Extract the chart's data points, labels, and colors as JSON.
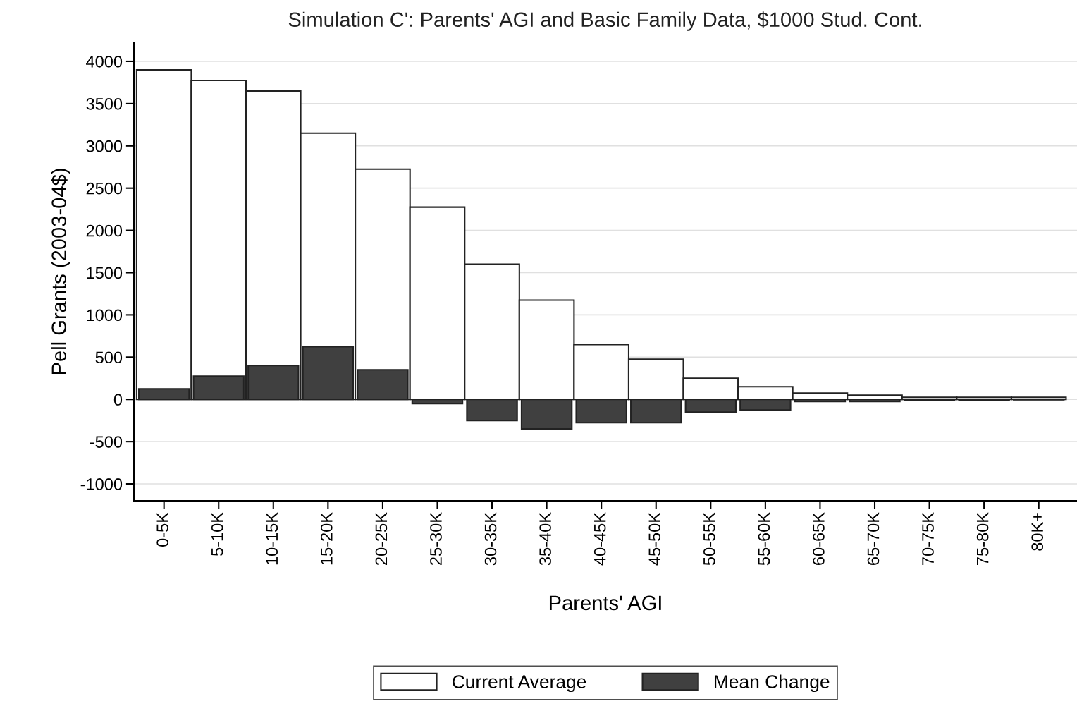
{
  "chart_data": {
    "type": "bar",
    "title": "Simulation C': Parents' AGI and Basic Family Data, $1000 Stud. Cont.",
    "xlabel": "Parents' AGI",
    "ylabel": "Pell Grants (2003-04$)",
    "categories": [
      "0-5K",
      "5-10K",
      "10-15K",
      "15-20K",
      "20-25K",
      "25-30K",
      "30-35K",
      "35-40K",
      "40-45K",
      "45-50K",
      "50-55K",
      "55-60K",
      "60-65K",
      "65-70K",
      "70-75K",
      "75-80K",
      "80K+"
    ],
    "series": [
      {
        "name": "Current Average",
        "color": "#ffffff",
        "values": [
          3900,
          3775,
          3650,
          3150,
          2725,
          2275,
          1600,
          1175,
          650,
          475,
          250,
          150,
          75,
          50,
          25,
          25,
          25
        ]
      },
      {
        "name": "Mean Change",
        "color": "#404040",
        "values": [
          125,
          275,
          400,
          625,
          350,
          -50,
          -250,
          -350,
          -275,
          -275,
          -150,
          -125,
          -25,
          -25,
          -10,
          -10,
          -5
        ]
      }
    ],
    "ylim": [
      -1200,
      4225
    ],
    "yticks": [
      -1000,
      -500,
      0,
      500,
      1000,
      1500,
      2000,
      2500,
      3000,
      3500,
      4000
    ],
    "grid": "y",
    "legend": "bottom"
  }
}
